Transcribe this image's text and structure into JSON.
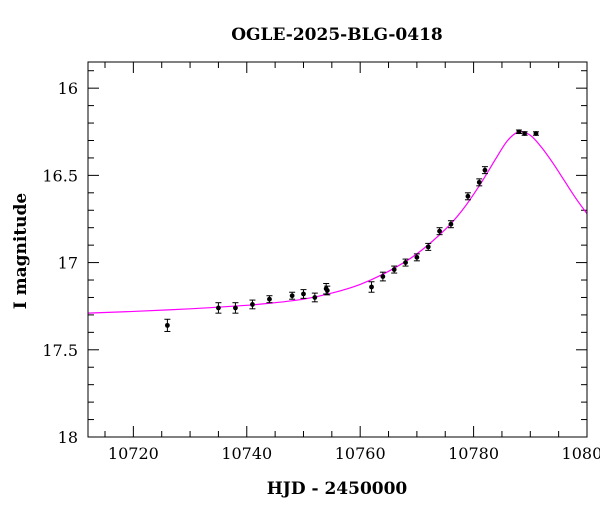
{
  "chart_data": {
    "type": "scatter",
    "title": "OGLE-2025-BLG-0418",
    "xlabel": "HJD - 2450000",
    "ylabel": "I magnitude",
    "xlim": [
      10712,
      10800
    ],
    "ylim": [
      18,
      15.85
    ],
    "y_inverted": true,
    "grid": false,
    "x_major_ticks": [
      10720,
      10740,
      10760,
      10780,
      10800
    ],
    "x_tick_labels": [
      "10720",
      "10740",
      "10760",
      "10780",
      "10800"
    ],
    "x_minor_step": 5,
    "y_major_ticks": [
      16,
      16.5,
      17,
      17.5,
      18
    ],
    "y_tick_labels": [
      "16",
      "16.5",
      "17",
      "17.5",
      "18"
    ],
    "y_minor_step": 0.1,
    "colors": {
      "model": "#ff00ff",
      "points": "#000000"
    },
    "series": [
      {
        "kind": "points",
        "x": [
          10726.0,
          10735.0,
          10738.0,
          10741.0,
          10744.0,
          10748.0,
          10750.0,
          10752.0,
          10754.0,
          10754.2,
          10762.0,
          10764.0,
          10766.0,
          10768.0,
          10770.0,
          10772.0,
          10774.0,
          10776.0,
          10779.0,
          10781.0,
          10782.0,
          10788.0,
          10789.0,
          10791.0
        ],
        "y": [
          17.36,
          17.26,
          17.26,
          17.24,
          17.21,
          17.19,
          17.18,
          17.2,
          17.15,
          17.16,
          17.14,
          17.08,
          17.04,
          17.0,
          16.97,
          16.91,
          16.82,
          16.78,
          16.62,
          16.54,
          16.47,
          16.25,
          16.26,
          16.26
        ],
        "err": [
          0.035,
          0.03,
          0.03,
          0.025,
          0.02,
          0.02,
          0.025,
          0.025,
          0.03,
          0.025,
          0.03,
          0.025,
          0.02,
          0.02,
          0.02,
          0.02,
          0.02,
          0.02,
          0.02,
          0.02,
          0.02,
          0.01,
          0.01,
          0.01
        ]
      },
      {
        "kind": "model",
        "x": [
          10712,
          10720,
          10730,
          10740,
          10745,
          10750,
          10755,
          10760,
          10765,
          10770,
          10775,
          10778,
          10781,
          10784,
          10786,
          10788,
          10790,
          10792,
          10794,
          10796,
          10798,
          10800
        ],
        "y": [
          17.29,
          17.28,
          17.265,
          17.245,
          17.23,
          17.21,
          17.175,
          17.125,
          17.05,
          16.95,
          16.81,
          16.7,
          16.56,
          16.4,
          16.3,
          16.25,
          16.27,
          16.34,
          16.43,
          16.53,
          16.63,
          16.72
        ]
      }
    ]
  }
}
